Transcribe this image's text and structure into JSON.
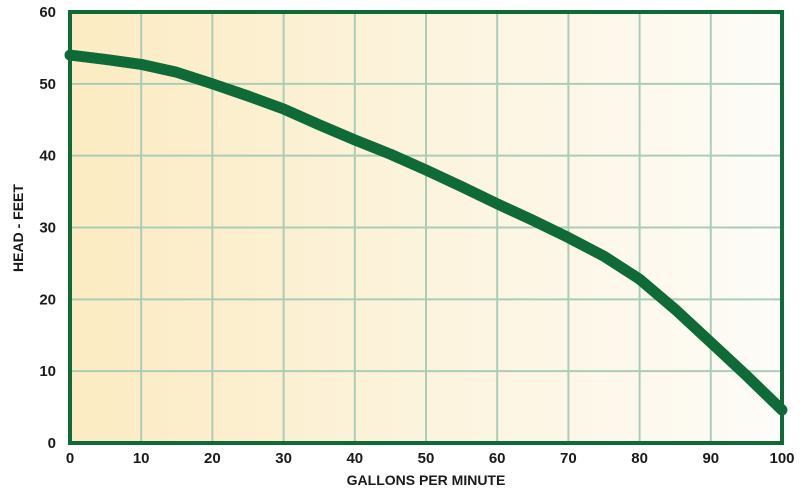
{
  "chart_data": {
    "type": "line",
    "title": "",
    "xlabel": "GALLONS PER MINUTE",
    "ylabel": "HEAD - FEET",
    "xlim": [
      0,
      100
    ],
    "ylim": [
      0,
      60
    ],
    "x_ticks": [
      0,
      10,
      20,
      30,
      40,
      50,
      60,
      70,
      80,
      90,
      100
    ],
    "y_ticks": [
      0,
      10,
      20,
      30,
      40,
      50,
      60
    ],
    "grid": true,
    "legend": "none",
    "series": [
      {
        "x": [
          0,
          5,
          10,
          15,
          20,
          25,
          30,
          35,
          40,
          45,
          50,
          55,
          60,
          65,
          70,
          75,
          80,
          85,
          90,
          95,
          100
        ],
        "y": [
          54,
          53.4,
          52.7,
          51.6,
          50,
          48.3,
          46.5,
          44.3,
          42.2,
          40.2,
          38,
          35.7,
          33.3,
          31,
          28.6,
          26,
          22.8,
          18.6,
          14,
          9.4,
          4.6
        ]
      }
    ],
    "colors": {
      "line": "#0e6b38",
      "frame": "#0e6b38",
      "grid": "#aacdb8",
      "bg_left": "#fcebc2",
      "bg_right": "#fdfcf8"
    }
  }
}
